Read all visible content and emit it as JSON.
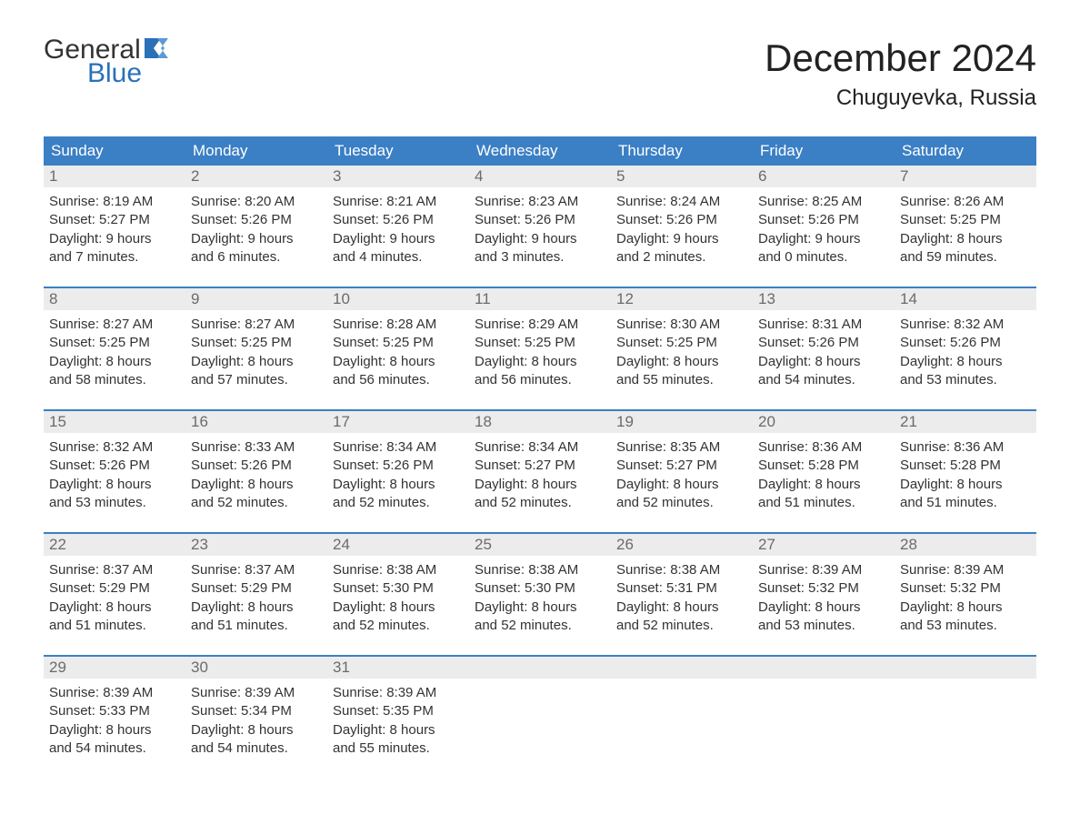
{
  "logo": {
    "general": "General",
    "blue": "Blue",
    "flag_color": "#2a71b8"
  },
  "title": "December 2024",
  "location": "Chuguyevka, Russia",
  "colors": {
    "header_bg": "#3b7fc4",
    "header_text": "#ffffff",
    "daynum_bg": "#ececec",
    "daynum_text": "#6b6b6b",
    "body_text": "#333333",
    "week_border": "#3b7fc4",
    "page_bg": "#ffffff",
    "logo_blue": "#2a71b8"
  },
  "day_headers": [
    "Sunday",
    "Monday",
    "Tuesday",
    "Wednesday",
    "Thursday",
    "Friday",
    "Saturday"
  ],
  "weeks": [
    [
      {
        "num": "1",
        "sunrise": "Sunrise: 8:19 AM",
        "sunset": "Sunset: 5:27 PM",
        "day1": "Daylight: 9 hours",
        "day2": "and 7 minutes."
      },
      {
        "num": "2",
        "sunrise": "Sunrise: 8:20 AM",
        "sunset": "Sunset: 5:26 PM",
        "day1": "Daylight: 9 hours",
        "day2": "and 6 minutes."
      },
      {
        "num": "3",
        "sunrise": "Sunrise: 8:21 AM",
        "sunset": "Sunset: 5:26 PM",
        "day1": "Daylight: 9 hours",
        "day2": "and 4 minutes."
      },
      {
        "num": "4",
        "sunrise": "Sunrise: 8:23 AM",
        "sunset": "Sunset: 5:26 PM",
        "day1": "Daylight: 9 hours",
        "day2": "and 3 minutes."
      },
      {
        "num": "5",
        "sunrise": "Sunrise: 8:24 AM",
        "sunset": "Sunset: 5:26 PM",
        "day1": "Daylight: 9 hours",
        "day2": "and 2 minutes."
      },
      {
        "num": "6",
        "sunrise": "Sunrise: 8:25 AM",
        "sunset": "Sunset: 5:26 PM",
        "day1": "Daylight: 9 hours",
        "day2": "and 0 minutes."
      },
      {
        "num": "7",
        "sunrise": "Sunrise: 8:26 AM",
        "sunset": "Sunset: 5:25 PM",
        "day1": "Daylight: 8 hours",
        "day2": "and 59 minutes."
      }
    ],
    [
      {
        "num": "8",
        "sunrise": "Sunrise: 8:27 AM",
        "sunset": "Sunset: 5:25 PM",
        "day1": "Daylight: 8 hours",
        "day2": "and 58 minutes."
      },
      {
        "num": "9",
        "sunrise": "Sunrise: 8:27 AM",
        "sunset": "Sunset: 5:25 PM",
        "day1": "Daylight: 8 hours",
        "day2": "and 57 minutes."
      },
      {
        "num": "10",
        "sunrise": "Sunrise: 8:28 AM",
        "sunset": "Sunset: 5:25 PM",
        "day1": "Daylight: 8 hours",
        "day2": "and 56 minutes."
      },
      {
        "num": "11",
        "sunrise": "Sunrise: 8:29 AM",
        "sunset": "Sunset: 5:25 PM",
        "day1": "Daylight: 8 hours",
        "day2": "and 56 minutes."
      },
      {
        "num": "12",
        "sunrise": "Sunrise: 8:30 AM",
        "sunset": "Sunset: 5:25 PM",
        "day1": "Daylight: 8 hours",
        "day2": "and 55 minutes."
      },
      {
        "num": "13",
        "sunrise": "Sunrise: 8:31 AM",
        "sunset": "Sunset: 5:26 PM",
        "day1": "Daylight: 8 hours",
        "day2": "and 54 minutes."
      },
      {
        "num": "14",
        "sunrise": "Sunrise: 8:32 AM",
        "sunset": "Sunset: 5:26 PM",
        "day1": "Daylight: 8 hours",
        "day2": "and 53 minutes."
      }
    ],
    [
      {
        "num": "15",
        "sunrise": "Sunrise: 8:32 AM",
        "sunset": "Sunset: 5:26 PM",
        "day1": "Daylight: 8 hours",
        "day2": "and 53 minutes."
      },
      {
        "num": "16",
        "sunrise": "Sunrise: 8:33 AM",
        "sunset": "Sunset: 5:26 PM",
        "day1": "Daylight: 8 hours",
        "day2": "and 52 minutes."
      },
      {
        "num": "17",
        "sunrise": "Sunrise: 8:34 AM",
        "sunset": "Sunset: 5:26 PM",
        "day1": "Daylight: 8 hours",
        "day2": "and 52 minutes."
      },
      {
        "num": "18",
        "sunrise": "Sunrise: 8:34 AM",
        "sunset": "Sunset: 5:27 PM",
        "day1": "Daylight: 8 hours",
        "day2": "and 52 minutes."
      },
      {
        "num": "19",
        "sunrise": "Sunrise: 8:35 AM",
        "sunset": "Sunset: 5:27 PM",
        "day1": "Daylight: 8 hours",
        "day2": "and 52 minutes."
      },
      {
        "num": "20",
        "sunrise": "Sunrise: 8:36 AM",
        "sunset": "Sunset: 5:28 PM",
        "day1": "Daylight: 8 hours",
        "day2": "and 51 minutes."
      },
      {
        "num": "21",
        "sunrise": "Sunrise: 8:36 AM",
        "sunset": "Sunset: 5:28 PM",
        "day1": "Daylight: 8 hours",
        "day2": "and 51 minutes."
      }
    ],
    [
      {
        "num": "22",
        "sunrise": "Sunrise: 8:37 AM",
        "sunset": "Sunset: 5:29 PM",
        "day1": "Daylight: 8 hours",
        "day2": "and 51 minutes."
      },
      {
        "num": "23",
        "sunrise": "Sunrise: 8:37 AM",
        "sunset": "Sunset: 5:29 PM",
        "day1": "Daylight: 8 hours",
        "day2": "and 51 minutes."
      },
      {
        "num": "24",
        "sunrise": "Sunrise: 8:38 AM",
        "sunset": "Sunset: 5:30 PM",
        "day1": "Daylight: 8 hours",
        "day2": "and 52 minutes."
      },
      {
        "num": "25",
        "sunrise": "Sunrise: 8:38 AM",
        "sunset": "Sunset: 5:30 PM",
        "day1": "Daylight: 8 hours",
        "day2": "and 52 minutes."
      },
      {
        "num": "26",
        "sunrise": "Sunrise: 8:38 AM",
        "sunset": "Sunset: 5:31 PM",
        "day1": "Daylight: 8 hours",
        "day2": "and 52 minutes."
      },
      {
        "num": "27",
        "sunrise": "Sunrise: 8:39 AM",
        "sunset": "Sunset: 5:32 PM",
        "day1": "Daylight: 8 hours",
        "day2": "and 53 minutes."
      },
      {
        "num": "28",
        "sunrise": "Sunrise: 8:39 AM",
        "sunset": "Sunset: 5:32 PM",
        "day1": "Daylight: 8 hours",
        "day2": "and 53 minutes."
      }
    ],
    [
      {
        "num": "29",
        "sunrise": "Sunrise: 8:39 AM",
        "sunset": "Sunset: 5:33 PM",
        "day1": "Daylight: 8 hours",
        "day2": "and 54 minutes."
      },
      {
        "num": "30",
        "sunrise": "Sunrise: 8:39 AM",
        "sunset": "Sunset: 5:34 PM",
        "day1": "Daylight: 8 hours",
        "day2": "and 54 minutes."
      },
      {
        "num": "31",
        "sunrise": "Sunrise: 8:39 AM",
        "sunset": "Sunset: 5:35 PM",
        "day1": "Daylight: 8 hours",
        "day2": "and 55 minutes."
      },
      {
        "empty": true
      },
      {
        "empty": true
      },
      {
        "empty": true
      },
      {
        "empty": true
      }
    ]
  ]
}
